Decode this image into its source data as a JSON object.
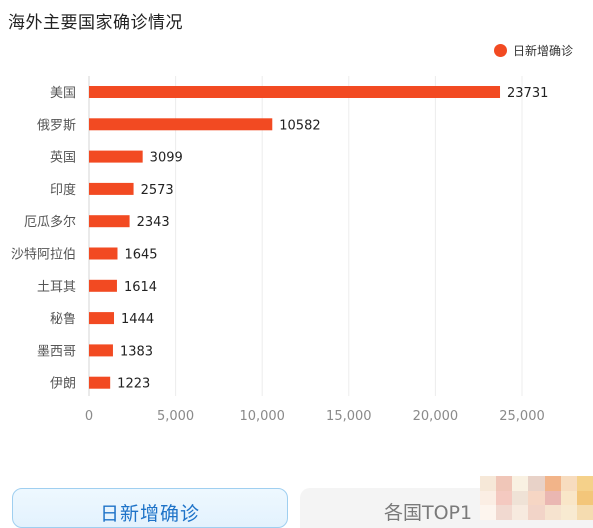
{
  "title": "海外主要国家确诊情况",
  "legend": {
    "label": "日新增确诊",
    "color": "#f24a22"
  },
  "tabs": {
    "active": "日新增确诊",
    "inactive": "各国TOP1"
  },
  "chart_data": {
    "type": "bar",
    "orientation": "horizontal",
    "title": "海外主要国家确诊情况",
    "categories": [
      "美国",
      "俄罗斯",
      "英国",
      "印度",
      "厄瓜多尔",
      "沙特阿拉伯",
      "土耳其",
      "秘鲁",
      "墨西哥",
      "伊朗"
    ],
    "series": [
      {
        "name": "日新增确诊",
        "color": "#f24a22",
        "values": [
          23731,
          10582,
          3099,
          2573,
          2343,
          1645,
          1614,
          1444,
          1383,
          1223
        ]
      }
    ],
    "xticks": [
      "0",
      "5,000",
      "10,000",
      "15,000",
      "20,000",
      "25,000"
    ],
    "xlim": [
      0,
      25000
    ],
    "grid": "vertical",
    "legend_position": "top-right"
  }
}
